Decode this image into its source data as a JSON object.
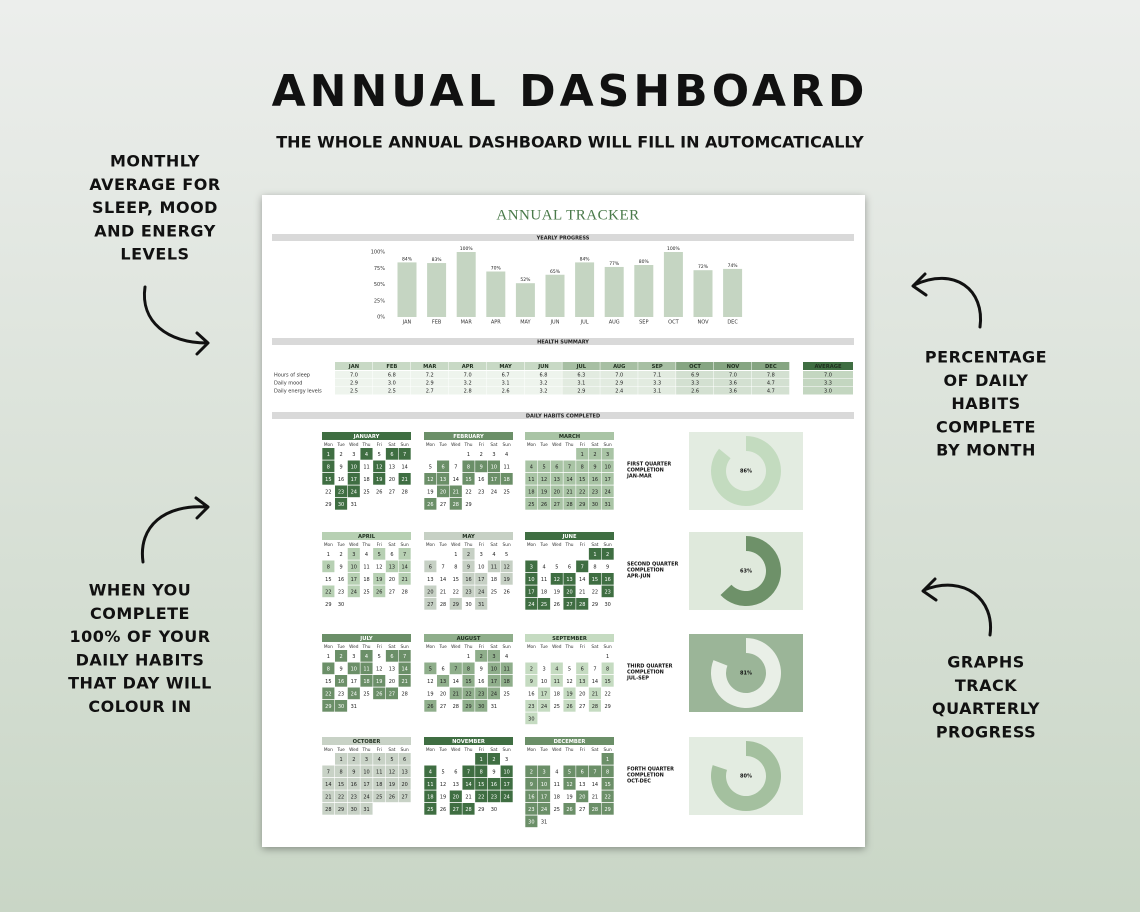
{
  "header": {
    "title": "ANNUAL DASHBOARD",
    "subtitle": "THE WHOLE ANNUAL DASHBOARD WILL FILL IN AUTOMCATICALLY"
  },
  "annotations": [
    {
      "lines": [
        "MONTHLY",
        "AVERAGE FOR",
        "SLEEP, MOOD",
        "AND ENERGY",
        "LEVELS"
      ]
    },
    {
      "lines": [
        "WHEN YOU",
        "COMPLETE",
        "100% OF YOUR",
        "DAILY HABITS",
        "THAT DAY WILL",
        "COLOUR IN"
      ]
    },
    {
      "lines": [
        "PERCENTAGE",
        "OF DAILY",
        "HABITS",
        "COMPLETE",
        "BY MONTH"
      ]
    },
    {
      "lines": [
        "GRAPHS",
        "TRACK",
        "QUARTERLY",
        "PROGRESS"
      ]
    }
  ],
  "tracker": {
    "title": "ANNUAL TRACKER",
    "sections": [
      "YEARLY PROGRESS",
      "HEALTH SUMMARY",
      "DAILY HABITS COMPLETED"
    ]
  },
  "chart_data": {
    "type": "bar",
    "categories": [
      "JAN",
      "FEB",
      "MAR",
      "APR",
      "MAY",
      "JUN",
      "JUL",
      "AUG",
      "SEP",
      "OCT",
      "NOV",
      "DEC"
    ],
    "values": [
      84,
      83,
      100,
      70,
      52,
      65,
      84,
      77,
      80,
      100,
      72,
      74
    ],
    "value_labels": [
      "84%",
      "83%",
      "100%",
      "70%",
      "52%",
      "65%",
      "84%",
      "77%",
      "80%",
      "100%",
      "72%",
      "74%"
    ],
    "color": "#c5d5c2",
    "ylim": [
      0,
      100
    ],
    "yticks": [
      {
        "value": 0,
        "label": "0%"
      },
      {
        "value": 25,
        "label": "25%"
      },
      {
        "value": 50,
        "label": "50%"
      },
      {
        "value": 75,
        "label": "75%"
      },
      {
        "value": 100,
        "label": "100%"
      }
    ]
  },
  "health": {
    "columns": [
      "JAN",
      "FEB",
      "MAR",
      "APR",
      "MAY",
      "JUN",
      "JUL",
      "AUG",
      "SEP",
      "OCT",
      "NOV",
      "DEC"
    ],
    "average_header": "AVERAGE",
    "rows": [
      {
        "label": "Hours of sleep",
        "values": [
          "7.0",
          "6.8",
          "7.2",
          "7.0",
          "6.7",
          "6.8",
          "6.3",
          "7.0",
          "7.1",
          "6.9",
          "7.0",
          "7.8"
        ],
        "average": "7.0"
      },
      {
        "label": "Daily mood",
        "values": [
          "2.9",
          "3.0",
          "2.9",
          "3.2",
          "3.1",
          "3.2",
          "3.1",
          "2.9",
          "3.3",
          "3.3",
          "3.6",
          "4.7"
        ],
        "average": "3.3"
      },
      {
        "label": "Daily energy levels",
        "values": [
          "2.5",
          "2.5",
          "2.7",
          "2.8",
          "2.6",
          "3.2",
          "2.9",
          "2.4",
          "3.1",
          "2.6",
          "3.6",
          "4.7"
        ],
        "average": "3.0"
      }
    ]
  },
  "habits": {
    "weekdays": [
      "Mon",
      "Tue",
      "Wed",
      "Thu",
      "Fri",
      "Sat",
      "Sun"
    ],
    "months": [
      {
        "name": "JANUARY",
        "color": "#3f6e42",
        "weeks": [
          [
            1,
            2,
            3,
            4,
            5,
            6,
            7
          ],
          [
            8,
            9,
            10,
            11,
            12,
            13,
            14
          ],
          [
            15,
            16,
            17,
            18,
            19,
            20,
            21
          ],
          [
            22,
            23,
            24,
            25,
            26,
            27,
            28
          ],
          [
            29,
            30,
            31
          ]
        ],
        "completed": [
          1,
          4,
          6,
          7,
          8,
          10,
          12,
          15,
          17,
          19,
          21,
          23,
          24,
          30
        ]
      },
      {
        "name": "FEBRUARY",
        "color": "#6b8f68",
        "weeks": [
          [
            null,
            null,
            null,
            1,
            2,
            3,
            4
          ],
          [
            5,
            6,
            7,
            8,
            9,
            10,
            11
          ],
          [
            12,
            13,
            14,
            15,
            16,
            17,
            18
          ],
          [
            19,
            20,
            21,
            22,
            23,
            24,
            25
          ],
          [
            26,
            27,
            28,
            29
          ]
        ],
        "completed": [
          6,
          8,
          9,
          10,
          12,
          13,
          15,
          17,
          18,
          20,
          21,
          26,
          28
        ]
      },
      {
        "name": "MARCH",
        "color": "#a9c4a5",
        "weeks": [
          [
            null,
            null,
            null,
            null,
            1,
            2,
            3
          ],
          [
            4,
            5,
            6,
            7,
            8,
            9,
            10
          ],
          [
            11,
            12,
            13,
            14,
            15,
            16,
            17
          ],
          [
            18,
            19,
            20,
            21,
            22,
            23,
            24
          ],
          [
            25,
            26,
            27,
            28,
            29,
            30,
            31
          ]
        ],
        "completed": [
          1,
          2,
          3,
          4,
          5,
          6,
          7,
          8,
          9,
          10,
          11,
          12,
          13,
          14,
          15,
          16,
          17,
          18,
          19,
          20,
          21,
          22,
          23,
          24,
          25,
          26,
          27,
          28,
          29,
          30,
          31
        ]
      },
      {
        "name": "APRIL",
        "color": "#b7d0b3",
        "weeks": [
          [
            1,
            2,
            3,
            4,
            5,
            6,
            7
          ],
          [
            8,
            9,
            10,
            11,
            12,
            13,
            14
          ],
          [
            15,
            16,
            17,
            18,
            19,
            20,
            21
          ],
          [
            22,
            23,
            24,
            25,
            26,
            27,
            28
          ],
          [
            29,
            30
          ]
        ],
        "completed": [
          3,
          5,
          7,
          8,
          10,
          13,
          14,
          17,
          19,
          21,
          22,
          24,
          26
        ]
      },
      {
        "name": "MAY",
        "color": "#c6d0c4",
        "weeks": [
          [
            null,
            null,
            1,
            2,
            3,
            4,
            5
          ],
          [
            6,
            7,
            8,
            9,
            10,
            11,
            12
          ],
          [
            13,
            14,
            15,
            16,
            17,
            18,
            19
          ],
          [
            20,
            21,
            22,
            23,
            24,
            25,
            26
          ],
          [
            27,
            28,
            29,
            30,
            31
          ]
        ],
        "completed": [
          2,
          6,
          9,
          11,
          12,
          16,
          17,
          19,
          20,
          23,
          24,
          27,
          29,
          31
        ]
      },
      {
        "name": "JUNE",
        "color": "#3f6e42",
        "weeks": [
          [
            null,
            null,
            null,
            null,
            null,
            1,
            2
          ],
          [
            3,
            4,
            5,
            6,
            7,
            8,
            9
          ],
          [
            10,
            11,
            12,
            13,
            14,
            15,
            16
          ],
          [
            17,
            18,
            19,
            20,
            21,
            22,
            23
          ],
          [
            24,
            25,
            26,
            27,
            28,
            29,
            30
          ]
        ],
        "completed": [
          1,
          2,
          3,
          7,
          10,
          12,
          13,
          15,
          16,
          17,
          20,
          23,
          24,
          25,
          27,
          28
        ]
      },
      {
        "name": "JULY",
        "color": "#6b8f68",
        "weeks": [
          [
            1,
            2,
            3,
            4,
            5,
            6,
            7
          ],
          [
            8,
            9,
            10,
            11,
            12,
            13,
            14
          ],
          [
            15,
            16,
            17,
            18,
            19,
            20,
            21
          ],
          [
            22,
            23,
            24,
            25,
            26,
            27,
            28
          ],
          [
            29,
            30,
            31
          ]
        ],
        "completed": [
          2,
          4,
          6,
          7,
          8,
          10,
          11,
          14,
          16,
          18,
          19,
          21,
          22,
          24,
          26,
          27,
          29,
          30
        ]
      },
      {
        "name": "AUGUST",
        "color": "#8fae8b",
        "weeks": [
          [
            null,
            null,
            null,
            1,
            2,
            3,
            4
          ],
          [
            5,
            6,
            7,
            8,
            9,
            10,
            11
          ],
          [
            12,
            13,
            14,
            15,
            16,
            17,
            18
          ],
          [
            19,
            20,
            21,
            22,
            23,
            24,
            25
          ],
          [
            26,
            27,
            28,
            29,
            30,
            31
          ]
        ],
        "completed": [
          2,
          3,
          5,
          7,
          8,
          10,
          11,
          13,
          15,
          17,
          18,
          21,
          22,
          23,
          24,
          26,
          29,
          30
        ]
      },
      {
        "name": "SEPTEMBER",
        "color": "#c5dbc1",
        "weeks": [
          [
            null,
            null,
            null,
            null,
            null,
            null,
            1
          ],
          [
            2,
            3,
            4,
            5,
            6,
            7,
            8
          ],
          [
            9,
            10,
            11,
            12,
            13,
            14,
            15
          ],
          [
            16,
            17,
            18,
            19,
            20,
            21,
            22
          ],
          [
            23,
            24,
            25,
            26,
            27,
            28,
            29
          ],
          [
            30
          ]
        ],
        "completed": [
          2,
          4,
          6,
          8,
          9,
          11,
          13,
          15,
          17,
          19,
          21,
          23,
          24,
          26,
          28,
          30
        ]
      },
      {
        "name": "OCTOBER",
        "color": "#c8d2c6",
        "weeks": [
          [
            null,
            1,
            2,
            3,
            4,
            5,
            6
          ],
          [
            7,
            8,
            9,
            10,
            11,
            12,
            13
          ],
          [
            14,
            15,
            16,
            17,
            18,
            19,
            20
          ],
          [
            21,
            22,
            23,
            24,
            25,
            26,
            27
          ],
          [
            28,
            29,
            30,
            31
          ]
        ],
        "completed": [
          1,
          2,
          3,
          4,
          5,
          6,
          7,
          8,
          9,
          10,
          11,
          12,
          13,
          14,
          15,
          16,
          17,
          18,
          19,
          20,
          21,
          22,
          23,
          24,
          25,
          26,
          27,
          28,
          29,
          30,
          31
        ]
      },
      {
        "name": "NOVEMBER",
        "color": "#3f6e42",
        "weeks": [
          [
            null,
            null,
            null,
            null,
            1,
            2,
            3
          ],
          [
            4,
            5,
            6,
            7,
            8,
            9,
            10
          ],
          [
            11,
            12,
            13,
            14,
            15,
            16,
            17
          ],
          [
            18,
            19,
            20,
            21,
            22,
            23,
            24
          ],
          [
            25,
            26,
            27,
            28,
            29,
            30
          ]
        ],
        "completed": [
          1,
          2,
          4,
          7,
          8,
          10,
          11,
          14,
          15,
          16,
          17,
          18,
          20,
          22,
          23,
          24,
          25,
          27,
          28
        ]
      },
      {
        "name": "DECEMBER",
        "color": "#6b8f68",
        "weeks": [
          [
            null,
            null,
            null,
            null,
            null,
            null,
            1
          ],
          [
            2,
            3,
            4,
            5,
            6,
            7,
            8
          ],
          [
            9,
            10,
            11,
            12,
            13,
            14,
            15
          ],
          [
            16,
            17,
            18,
            19,
            20,
            21,
            22
          ],
          [
            23,
            24,
            25,
            26,
            27,
            28,
            29
          ],
          [
            30,
            31
          ]
        ],
        "completed": [
          1,
          2,
          3,
          5,
          6,
          7,
          8,
          9,
          10,
          12,
          15,
          16,
          17,
          20,
          22,
          23,
          24,
          26,
          28,
          29,
          30
        ]
      }
    ],
    "quarters": [
      {
        "lines": [
          "FIRST QUARTER",
          "COMPLETION",
          "JAN-MAR"
        ],
        "value": 86,
        "value_label": "86%",
        "color": "#c3dbbf",
        "background": "#e3ece1"
      },
      {
        "lines": [
          "SECOND QUARTER",
          "COMPLETION",
          "APR-JUN"
        ],
        "value": 63,
        "value_label": "63%",
        "color": "#6e9169",
        "background": "#dfe9dc"
      },
      {
        "lines": [
          "THIRD QUARTER",
          "COMPLETION",
          "JUL-SEP"
        ],
        "value": 81,
        "value_label": "81%",
        "color": "#e9efe7",
        "background": "#9bb598"
      },
      {
        "lines": [
          "FORTH QUARTER",
          "COMPLETION",
          "OCT-DEC"
        ],
        "value": 80,
        "value_label": "80%",
        "color": "#a4c09f",
        "background": "#e3ece1"
      }
    ]
  }
}
